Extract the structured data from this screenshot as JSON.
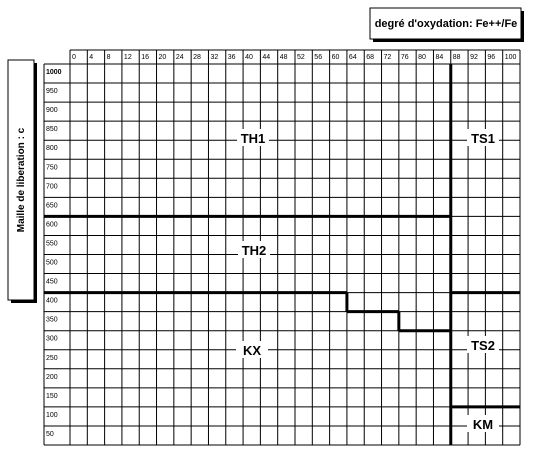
{
  "title": "degré d'oxydation: Fe++/Fe",
  "y_axis_label": "Maille de liberation : c",
  "columns": [
    0,
    4,
    8,
    12,
    16,
    20,
    24,
    28,
    32,
    36,
    40,
    44,
    48,
    52,
    56,
    60,
    64,
    68,
    72,
    76,
    80,
    84,
    88,
    92,
    96,
    100
  ],
  "rows": [
    1000,
    950,
    900,
    850,
    800,
    750,
    700,
    650,
    600,
    550,
    500,
    450,
    400,
    350,
    300,
    250,
    200,
    150,
    100,
    50
  ],
  "regions": [
    "TH1",
    "TS1",
    "TH2",
    "KX",
    "TS2",
    "KM"
  ]
}
